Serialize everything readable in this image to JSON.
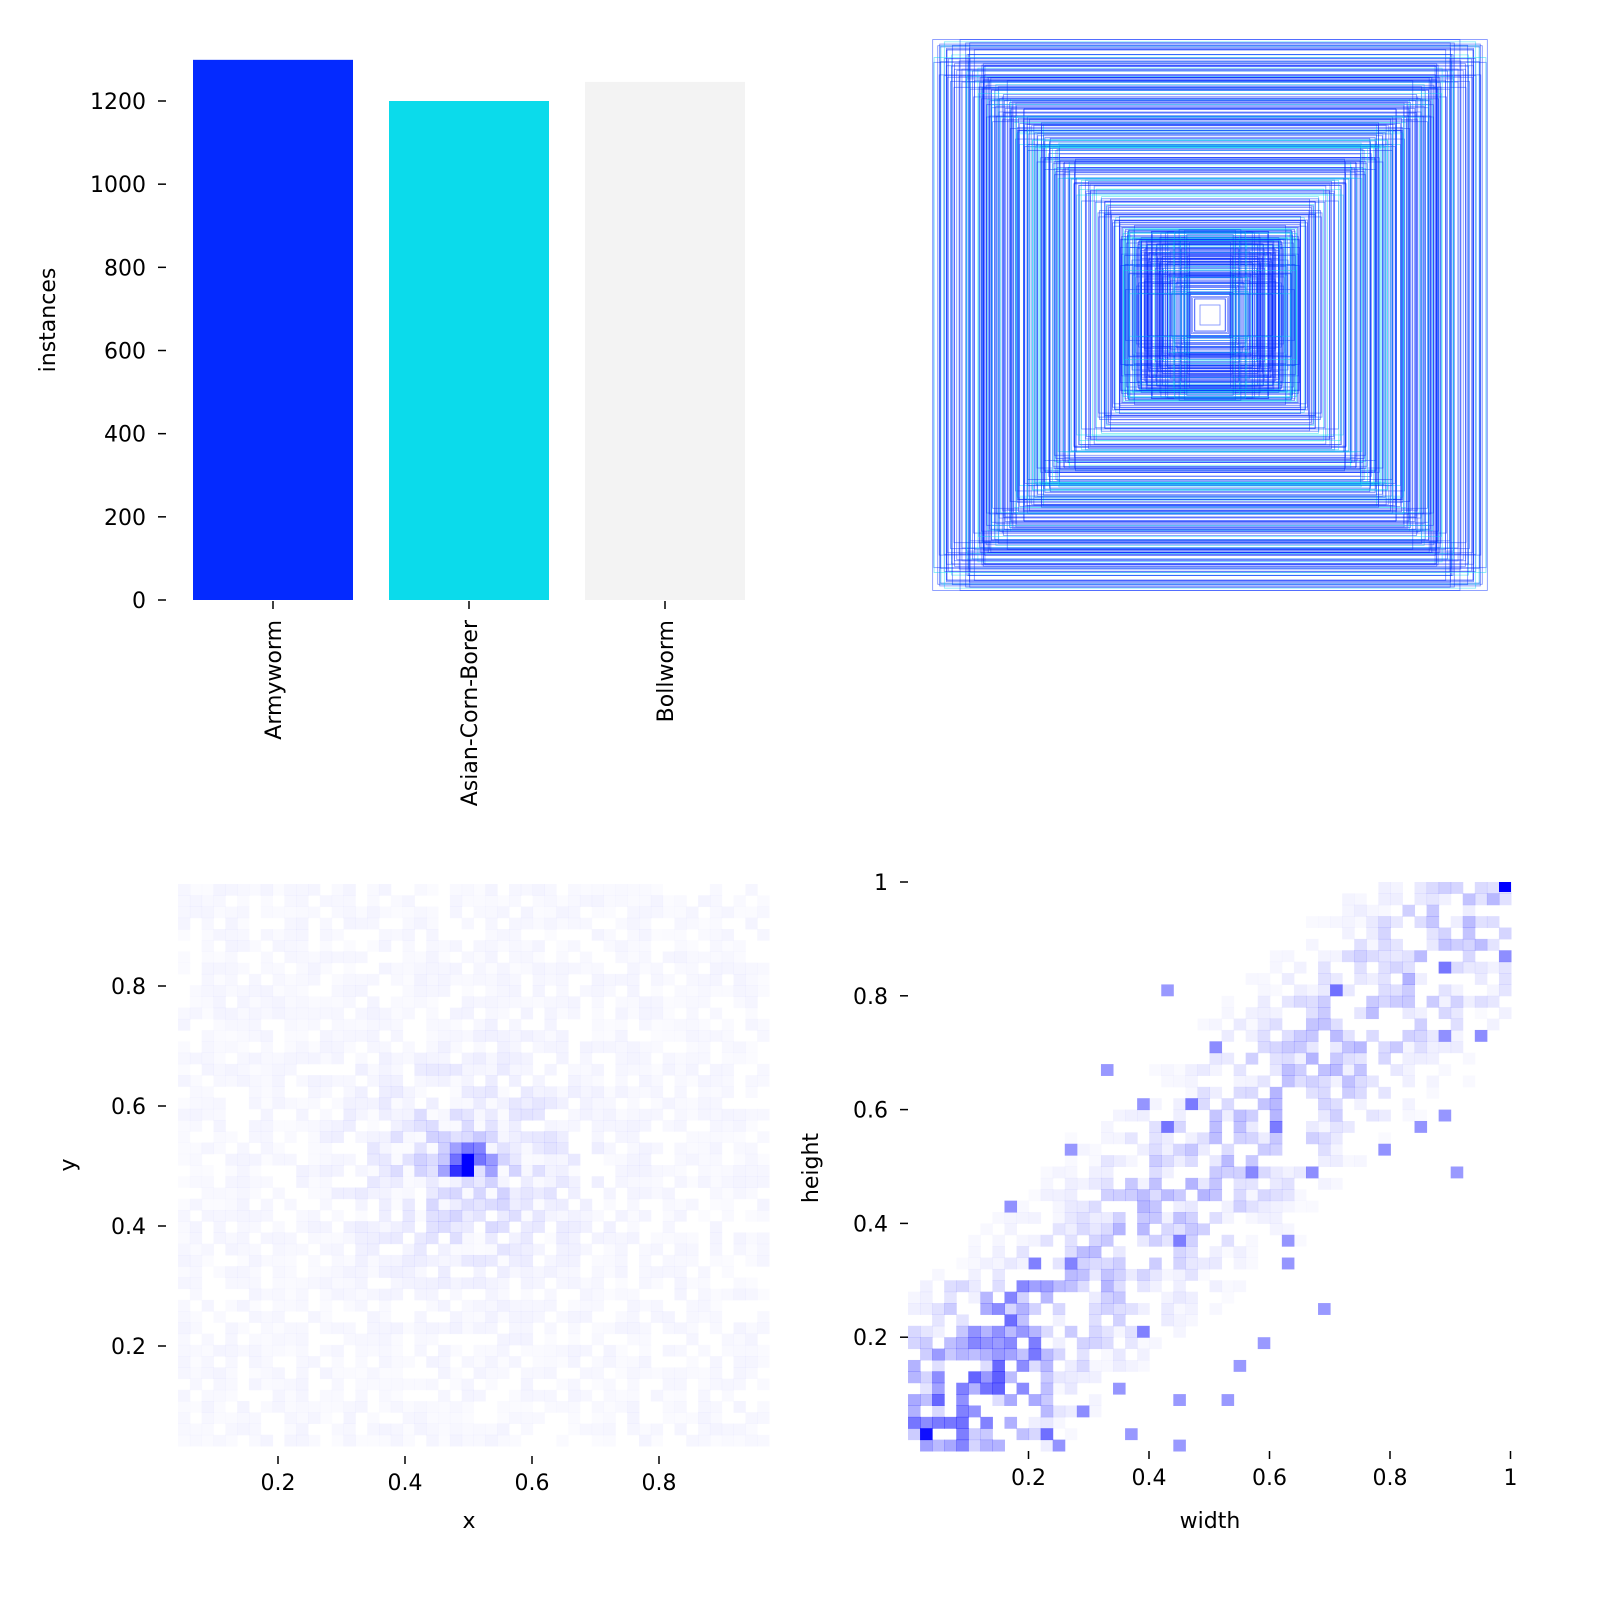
{
  "chart_data": [
    {
      "type": "bar",
      "title": "",
      "categories": [
        "Armyworm",
        "Asian-Corn-Borer",
        "Bollworm"
      ],
      "values": [
        1299,
        1200,
        1246
      ],
      "colors": [
        "#042aff",
        "#0bdbeb",
        "#f3f3f3"
      ],
      "xlabel": "",
      "ylabel": "instances",
      "ylim": [
        0,
        1300
      ],
      "yticks": [
        0,
        200,
        400,
        600,
        800,
        1000,
        1200
      ],
      "grid": false
    },
    {
      "type": "scatter",
      "title": "",
      "colors": [
        "#042aff",
        "#0bdbeb"
      ]
    },
    {
      "type": "heatmap",
      "xlabel": "x",
      "ylabel": "y",
      "xticks": [
        0.2,
        0.4,
        0.6,
        0.8
      ],
      "yticks": [
        0.2,
        0.4,
        0.6,
        0.8
      ],
      "xlim": [
        0,
        1
      ],
      "ylim": [
        0,
        1
      ],
      "peak": [
        0.5,
        0.5
      ],
      "color": "#0000ff"
    },
    {
      "type": "heatmap",
      "xlabel": "width",
      "ylabel": "height",
      "xticks": [
        0.2,
        0.4,
        0.6,
        0.8,
        1.0
      ],
      "yticks": [
        0.2,
        0.4,
        0.6,
        0.8,
        1.0
      ],
      "xlim": [
        0,
        1
      ],
      "ylim": [
        0,
        1
      ],
      "color": "#0000ff"
    }
  ]
}
